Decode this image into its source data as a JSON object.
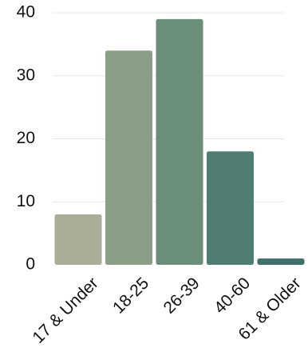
{
  "chart_data": {
    "type": "bar",
    "categories": [
      "17 & Under",
      "18-25",
      "26-39",
      "40-60",
      "61 & Older"
    ],
    "values": [
      8,
      34,
      39,
      18,
      1
    ],
    "colors": [
      "#a8ae98",
      "#8b9e86",
      "#6b8e7b",
      "#4f7d73",
      "#3f6e6b"
    ],
    "gridline_color": "#e6e6e6",
    "ylim": [
      0,
      40
    ],
    "yticks": [
      0,
      10,
      20,
      30,
      40
    ],
    "grid": true,
    "title": "",
    "xlabel": "",
    "ylabel": ""
  }
}
